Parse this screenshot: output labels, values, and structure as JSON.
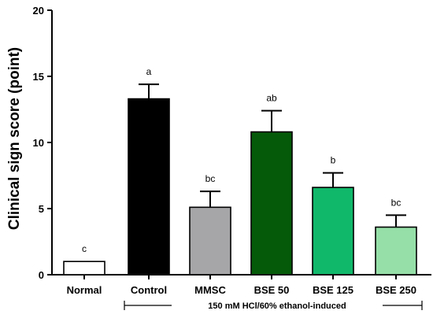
{
  "chart_data": {
    "type": "bar",
    "title": "",
    "xlabel": "",
    "ylabel": "Clinical sign score (point)",
    "ylim": [
      0,
      20
    ],
    "yticks": [
      0,
      5,
      10,
      15,
      20
    ],
    "grid": false,
    "categories": [
      "Normal",
      "Control",
      "MMSC",
      "BSE 50",
      "BSE 125",
      "BSE 250"
    ],
    "values": [
      1.0,
      13.3,
      5.1,
      10.8,
      6.6,
      3.6
    ],
    "errors": [
      0,
      1.1,
      1.2,
      1.6,
      1.1,
      0.9
    ],
    "significance": [
      "c",
      "a",
      "bc",
      "ab",
      "b",
      "bc"
    ],
    "colors": [
      "#ffffff",
      "#000000",
      "#a6a6a8",
      "#045a08",
      "#10b86a",
      "#96dfa8"
    ],
    "group_label": "150 mM HCl/60% ethanol-induced"
  }
}
